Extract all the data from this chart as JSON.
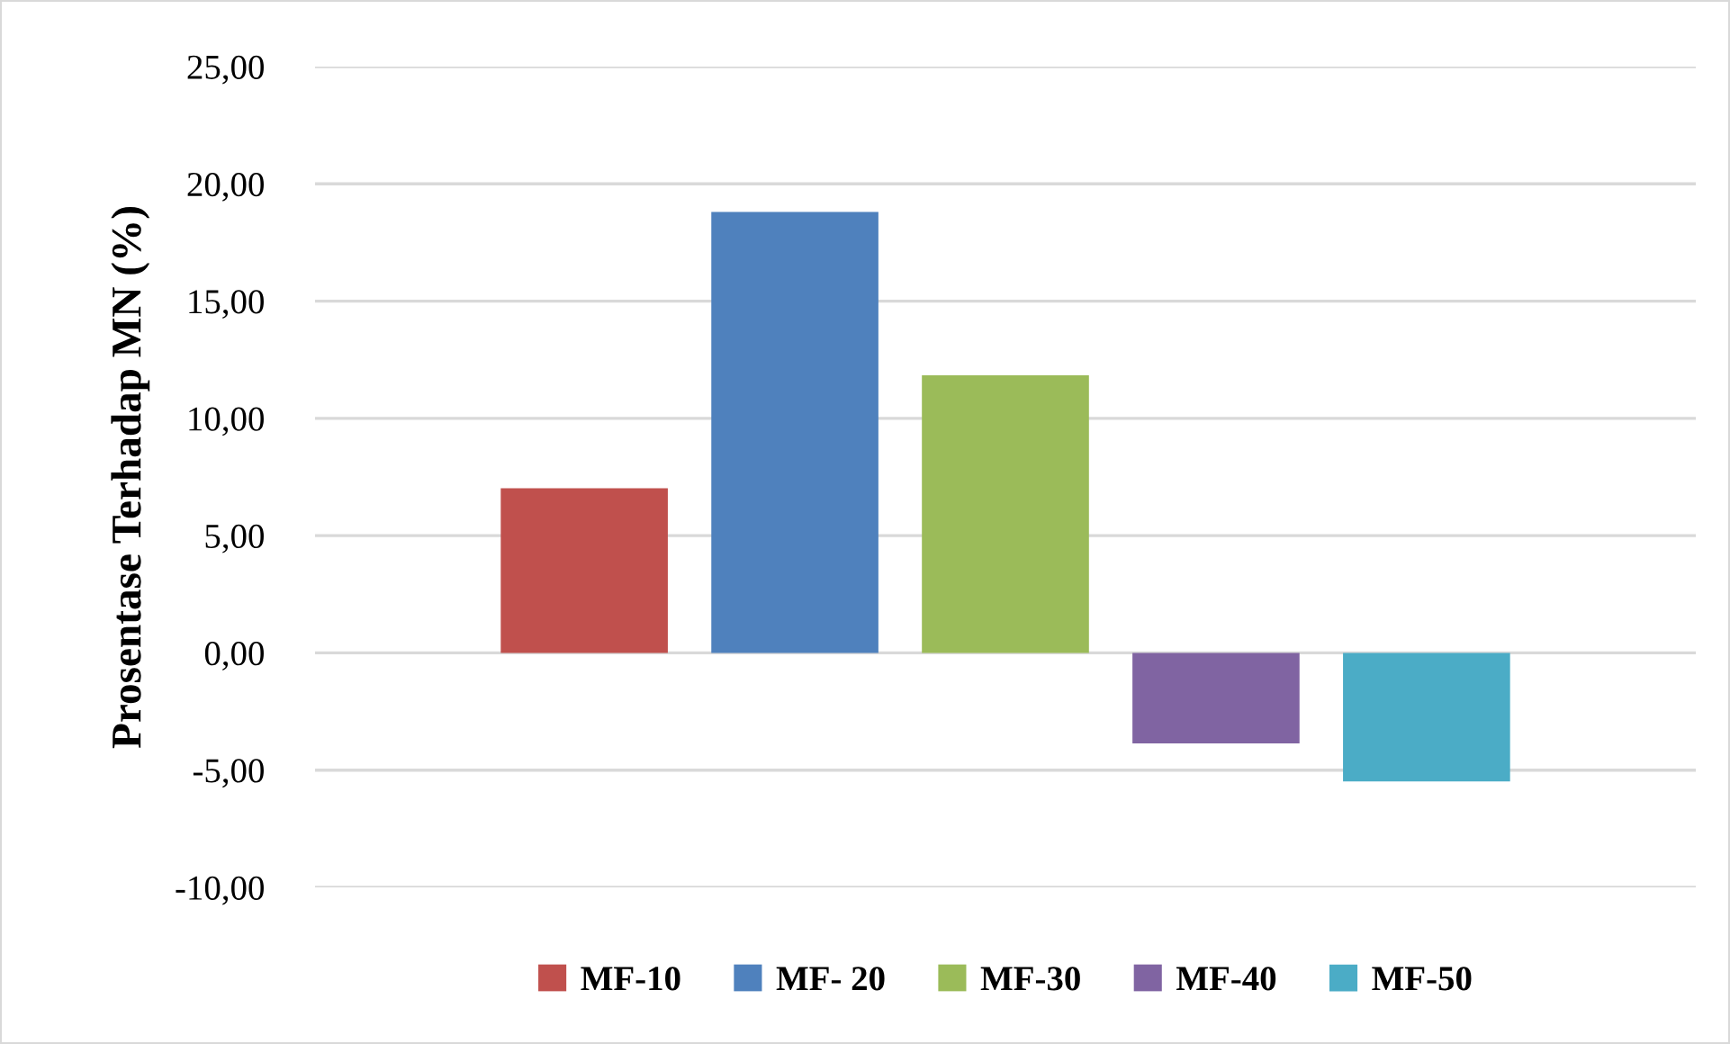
{
  "chart_data": {
    "type": "bar",
    "ylabel": "Prosentase Terhadap MN (%)",
    "categories": [
      null
    ],
    "series": [
      {
        "name": "MF-10",
        "color": "#c0504d",
        "values": [
          7.02
        ]
      },
      {
        "name": "MF- 20",
        "color": "#4f81bd",
        "values": [
          18.8
        ]
      },
      {
        "name": "MF-30",
        "color": "#9bbb59",
        "values": [
          11.84
        ]
      },
      {
        "name": "MF-40",
        "color": "#8064a2",
        "values": [
          -3.86
        ]
      },
      {
        "name": "MF-50",
        "color": "#4bacc6",
        "values": [
          -5.48
        ]
      }
    ],
    "ylim": [
      -10,
      25
    ],
    "yticks": [
      {
        "value": -10,
        "label": "-10,00"
      },
      {
        "value": -5,
        "label": "-5,00"
      },
      {
        "value": 0,
        "label": "0,00"
      },
      {
        "value": 5,
        "label": "5,00"
      },
      {
        "value": 10,
        "label": "10,00"
      },
      {
        "value": 15,
        "label": "15,00"
      },
      {
        "value": 20,
        "label": "20,00"
      },
      {
        "value": 25,
        "label": "25,00"
      }
    ],
    "grid": "y",
    "legend": "bottom"
  }
}
